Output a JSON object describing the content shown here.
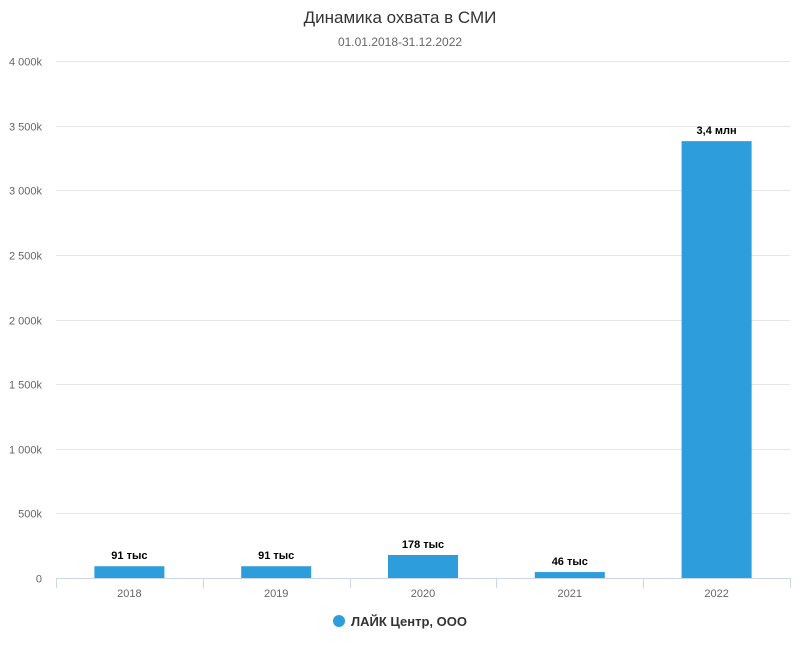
{
  "chart_data": {
    "type": "bar",
    "title": "Динамика охвата в СМИ",
    "subtitle": "01.01.2018-31.12.2022",
    "categories": [
      "2018",
      "2019",
      "2020",
      "2021",
      "2022"
    ],
    "series": [
      {
        "name": "ЛАЙК Центр, ООО",
        "values": [
          91000,
          91000,
          178000,
          46000,
          3380000
        ],
        "labels": [
          "91 тыс",
          "91 тыс",
          "178 тыс",
          "46 тыс",
          "3,4 млн"
        ],
        "color": "#2d9ddb"
      }
    ],
    "ylim": [
      0,
      4000000
    ],
    "yticks": [
      0,
      500000,
      1000000,
      1500000,
      2000000,
      2500000,
      3000000,
      3500000,
      4000000
    ],
    "ytick_labels": [
      "0",
      "500k",
      "1 000k",
      "1 500k",
      "2 000k",
      "2 500k",
      "3 000k",
      "3 500k",
      "4 000k"
    ],
    "grid": true,
    "legend_position": "bottom-center"
  }
}
